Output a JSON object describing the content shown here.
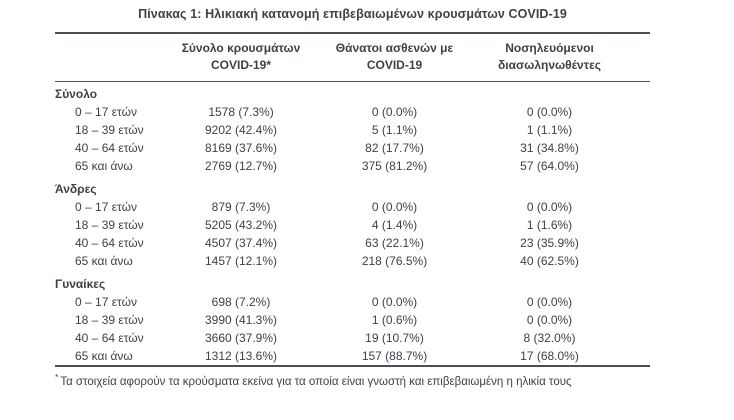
{
  "title": "Πίνακας 1: Ηλικιακή κατανομή επιβεβαιωμένων κρουσμάτων COVID-19",
  "columns": [
    {
      "line1": "Σύνολο κρουσμάτων",
      "line2": "COVID-19*"
    },
    {
      "line1": "Θάνατοι ασθενών με",
      "line2": "COVID-19"
    },
    {
      "line1": "Νοσηλευόμενοι",
      "line2": "διασωληνωθέντες"
    }
  ],
  "sections": [
    {
      "label": "Σύνολο",
      "rows": [
        {
          "age": "0 – 17 ετών",
          "cases": "1578 (7.3%)",
          "deaths": "0 (0.0%)",
          "intubated": "0 (0.0%)"
        },
        {
          "age": "18 – 39 ετών",
          "cases": "9202 (42.4%)",
          "deaths": "5 (1.1%)",
          "intubated": "1 (1.1%)"
        },
        {
          "age": "40 – 64 ετών",
          "cases": "8169 (37.6%)",
          "deaths": "82 (17.7%)",
          "intubated": "31 (34.8%)"
        },
        {
          "age": "65 και άνω",
          "cases": "2769 (12.7%)",
          "deaths": "375 (81.2%)",
          "intubated": "57 (64.0%)"
        }
      ]
    },
    {
      "label": "Άνδρες",
      "rows": [
        {
          "age": "0 – 17 ετών",
          "cases": "879 (7.3%)",
          "deaths": "0 (0.0%)",
          "intubated": "0 (0.0%)"
        },
        {
          "age": "18 – 39 ετών",
          "cases": "5205 (43.2%)",
          "deaths": "4 (1.4%)",
          "intubated": "1 (1.6%)"
        },
        {
          "age": "40 – 64 ετών",
          "cases": "4507 (37.4%)",
          "deaths": "63 (22.1%)",
          "intubated": "23 (35.9%)"
        },
        {
          "age": "65 και άνω",
          "cases": "1457 (12.1%)",
          "deaths": "218 (76.5%)",
          "intubated": "40 (62.5%)"
        }
      ]
    },
    {
      "label": "Γυναίκες",
      "rows": [
        {
          "age": "0 – 17 ετών",
          "cases": "698 (7.2%)",
          "deaths": "0 (0.0%)",
          "intubated": "0 (0.0%)"
        },
        {
          "age": "18 – 39 ετών",
          "cases": "3990 (41.3%)",
          "deaths": "1 (0.6%)",
          "intubated": "0 (0.0%)"
        },
        {
          "age": "40 – 64 ετών",
          "cases": "3660 (37.9%)",
          "deaths": "19 (10.7%)",
          "intubated": "8 (32.0%)"
        },
        {
          "age": "65 και άνω",
          "cases": "1312 (13.6%)",
          "deaths": "157 (88.7%)",
          "intubated": "17 (68.0%)"
        }
      ]
    }
  ],
  "footnote_marker": "*",
  "footnote": "Τα στοιχεία αφορούν τα κρούσματα εκείνα για τα οποία είναι γνωστή και επιβεβαιωμένη η ηλικία τους",
  "colors": {
    "text": "#3b424a",
    "rule_line": "#4a5056",
    "background": "#ffffff"
  }
}
